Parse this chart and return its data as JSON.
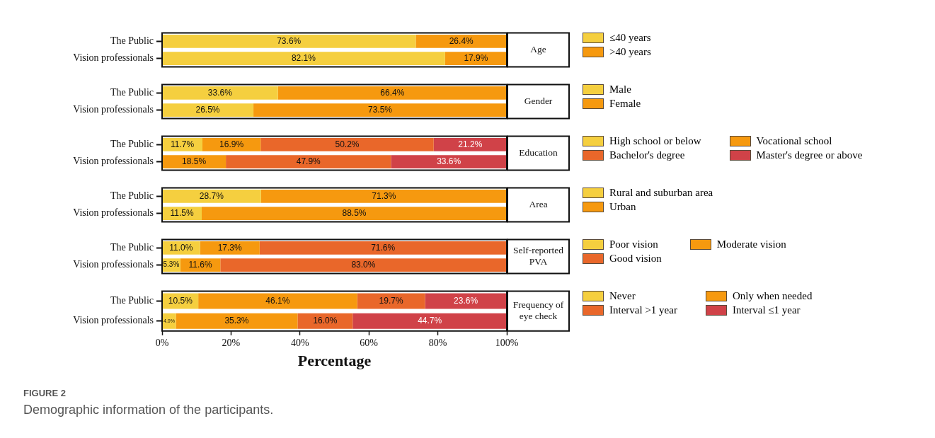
{
  "chart_data": [
    {
      "type": "bar",
      "orientation": "horizontal",
      "stacked": true,
      "annotations": [
        "Age"
      ],
      "categories": [
        "The Public",
        "Vision professionals"
      ],
      "xlim": [
        0,
        100
      ],
      "tick_labels": "y",
      "legend": "right",
      "series": [
        {
          "name": "≤40 years",
          "color": "#f5cf3f",
          "values": [
            73.6,
            82.1
          ],
          "value_labels": [
            "73.6%",
            "82.1%"
          ]
        },
        {
          "name": ">40 years",
          "color": "#f6990f",
          "values": [
            26.4,
            17.9
          ],
          "value_labels": [
            "26.4%",
            "17.9%"
          ]
        }
      ]
    },
    {
      "type": "bar",
      "orientation": "horizontal",
      "stacked": true,
      "annotations": [
        "Gender"
      ],
      "categories": [
        "The Public",
        "Vision professionals"
      ],
      "xlim": [
        0,
        100
      ],
      "tick_labels": "y",
      "legend": "right",
      "series": [
        {
          "name": "Male",
          "color": "#f5cf3f",
          "values": [
            33.6,
            26.5
          ],
          "value_labels": [
            "33.6%",
            "26.5%"
          ]
        },
        {
          "name": "Female",
          "color": "#f6990f",
          "values": [
            66.4,
            73.5
          ],
          "value_labels": [
            "66.4%",
            "73.5%"
          ]
        }
      ]
    },
    {
      "type": "bar",
      "orientation": "horizontal",
      "stacked": true,
      "annotations": [
        "Education"
      ],
      "categories": [
        "The Public",
        "Vision professionals"
      ],
      "xlim": [
        0,
        100
      ],
      "tick_labels": "y",
      "legend": "right",
      "series": [
        {
          "name": "High school or below",
          "color": "#f5cf3f",
          "values": [
            11.7,
            null
          ],
          "value_labels": [
            "11.7%",
            null
          ]
        },
        {
          "name": "Vocational school",
          "color": "#f6990f",
          "values": [
            16.9,
            18.5
          ],
          "value_labels": [
            "16.9%",
            "18.5%"
          ]
        },
        {
          "name": "Bachelor's degree",
          "color": "#e9672a",
          "values": [
            50.2,
            47.9
          ],
          "value_labels": [
            "50.2%",
            "47.9%"
          ]
        },
        {
          "name": "Master's degree or above",
          "color": "#d04248",
          "values": [
            21.2,
            33.6
          ],
          "value_labels": [
            "21.2%",
            "33.6%"
          ]
        }
      ]
    },
    {
      "type": "bar",
      "orientation": "horizontal",
      "stacked": true,
      "annotations": [
        "Area"
      ],
      "categories": [
        "The Public",
        "Vision professionals"
      ],
      "xlim": [
        0,
        100
      ],
      "tick_labels": "y",
      "legend": "right",
      "series": [
        {
          "name": "Rural and suburban area",
          "color": "#f5cf3f",
          "values": [
            28.7,
            11.5
          ],
          "value_labels": [
            "28.7%",
            "11.5%"
          ]
        },
        {
          "name": "Urban",
          "color": "#f6990f",
          "values": [
            71.3,
            88.5
          ],
          "value_labels": [
            "71.3%",
            "88.5%"
          ]
        }
      ]
    },
    {
      "type": "bar",
      "orientation": "horizontal",
      "stacked": true,
      "annotations": [
        "Self-reported PVA"
      ],
      "categories": [
        "The Public",
        "Vision professionals"
      ],
      "xlim": [
        0,
        100
      ],
      "tick_labels": "y",
      "legend": "right",
      "series": [
        {
          "name": "Poor vision",
          "color": "#f5cf3f",
          "values": [
            11.0,
            5.3
          ],
          "value_labels": [
            "11.0%",
            "5.3%"
          ]
        },
        {
          "name": "Moderate vision",
          "color": "#f6990f",
          "values": [
            17.3,
            11.6
          ],
          "value_labels": [
            "17.3%",
            "11.6%"
          ]
        },
        {
          "name": "Good vision",
          "color": "#e9672a",
          "values": [
            71.6,
            83.0
          ],
          "value_labels": [
            "71.6%",
            "83.0%"
          ]
        }
      ]
    },
    {
      "type": "bar",
      "orientation": "horizontal",
      "stacked": true,
      "categories": [
        "The Public",
        "Vision professionals"
      ],
      "xlim": [
        0,
        100
      ],
      "xlabel": "Percentage",
      "legend": "right",
      "xticks": [
        {
          "value": 0,
          "label": "0%"
        },
        {
          "value": 20,
          "label": "20%"
        },
        {
          "value": 40,
          "label": "40%"
        },
        {
          "value": 60,
          "label": "60%"
        },
        {
          "value": 80,
          "label": "80%"
        },
        {
          "value": 100,
          "label": "100%"
        }
      ],
      "annotations": [
        "Frequency of eye check",
        "FIGURE 2",
        "Demographic information of the participants."
      ],
      "series": [
        {
          "name": "Never",
          "color": "#f5cf3f",
          "values": [
            10.5,
            4.0
          ],
          "value_labels": [
            "10.5%",
            "4.0%"
          ]
        },
        {
          "name": "Only when needed",
          "color": "#f6990f",
          "values": [
            46.1,
            35.3
          ],
          "value_labels": [
            "46.1%",
            "35.3%"
          ]
        },
        {
          "name": "Interval >1 year",
          "color": "#e9672a",
          "values": [
            19.7,
            16.0
          ],
          "value_labels": [
            "19.7%",
            "16.0%"
          ]
        },
        {
          "name": "Interval ≤1 year",
          "color": "#d04248",
          "values": [
            23.6,
            44.7
          ],
          "value_labels": [
            "23.6%",
            "44.7%"
          ]
        }
      ]
    }
  ]
}
